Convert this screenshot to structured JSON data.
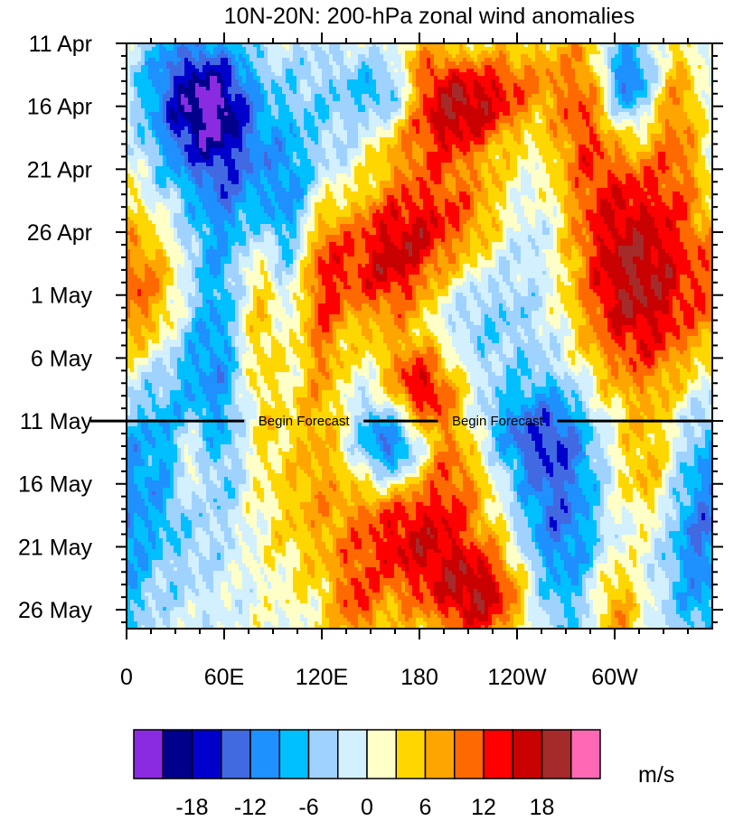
{
  "chart_data": {
    "type": "heatmap",
    "title": "10N-20N: 200-hPa zonal wind anomalies",
    "xlabel": "",
    "ylabel": "",
    "units": "m/s",
    "x_ticks": [
      "0",
      "60E",
      "120E",
      "180",
      "120W",
      "60W"
    ],
    "x_tick_lon": [
      0,
      60,
      120,
      180,
      240,
      300
    ],
    "xlim": [
      0,
      360
    ],
    "y_ticks": [
      "11 Apr",
      "16 Apr",
      "21 Apr",
      "26 Apr",
      "1 May",
      "6 May",
      "11 May",
      "16 May",
      "21 May",
      "26 May"
    ],
    "y_tick_day": [
      0,
      5,
      10,
      15,
      20,
      25,
      30,
      35,
      40,
      45
    ],
    "ylim_days": [
      0,
      46.5
    ],
    "forecast": {
      "day": 30,
      "label": "Begin Forecast",
      "label_lon": [
        109,
        228
      ]
    },
    "colorbar": {
      "levels": [
        -21,
        -18,
        -15,
        -12,
        -9,
        -6,
        -3,
        0,
        3,
        6,
        9,
        12,
        15,
        18,
        21
      ],
      "colors": [
        "#8a2be2",
        "#00008b",
        "#0000cd",
        "#4169e1",
        "#1e90ff",
        "#00bfff",
        "#a0d2ff",
        "#d2f0ff",
        "#ffffc8",
        "#ffd700",
        "#ffa500",
        "#ff6a00",
        "#ff0000",
        "#c80000",
        "#a52a2a",
        "#ff69b4"
      ],
      "labels": [
        "-18",
        "-12",
        "-6",
        "0",
        "6",
        "12",
        "18"
      ],
      "label_values": [
        -18,
        -12,
        -6,
        0,
        6,
        12,
        18
      ]
    },
    "features": [
      {
        "lon": 55,
        "day": 5,
        "slon": 20,
        "sday": 3.5,
        "amp": -16,
        "tilt": 0
      },
      {
        "lon": 30,
        "day": 4,
        "slon": 22,
        "sday": 5,
        "amp": -9,
        "tilt": 0
      },
      {
        "lon": 80,
        "day": 12,
        "slon": 25,
        "sday": 4,
        "amp": -10,
        "tilt": 0
      },
      {
        "lon": 120,
        "day": 7,
        "slon": 20,
        "sday": 6,
        "amp": -6,
        "tilt": 0
      },
      {
        "lon": 160,
        "day": 4,
        "slon": 14,
        "sday": 2,
        "amp": -9,
        "tilt": 0
      },
      {
        "lon": 210,
        "day": 5,
        "slon": 28,
        "sday": 3,
        "amp": 17,
        "tilt": 0.6
      },
      {
        "lon": 185,
        "day": 2,
        "slon": 14,
        "sday": 2,
        "amp": 8,
        "tilt": 0
      },
      {
        "lon": 280,
        "day": 5,
        "slon": 14,
        "sday": 5,
        "amp": 8,
        "tilt": 0
      },
      {
        "lon": 308,
        "day": 3,
        "slon": 12,
        "sday": 3,
        "amp": -16,
        "tilt": 0
      },
      {
        "lon": 340,
        "day": 6,
        "slon": 12,
        "sday": 5,
        "amp": 7,
        "tilt": 0
      },
      {
        "lon": 175,
        "day": 15,
        "slon": 40,
        "sday": 4,
        "amp": 15,
        "tilt": 0.5
      },
      {
        "lon": 250,
        "day": 14,
        "slon": 18,
        "sday": 4,
        "amp": -6,
        "tilt": 0
      },
      {
        "lon": 305,
        "day": 14,
        "slon": 28,
        "sday": 7,
        "amp": 10,
        "tilt": 0
      },
      {
        "lon": 320,
        "day": 21,
        "slon": 32,
        "sday": 6,
        "amp": 12,
        "tilt": 0
      },
      {
        "lon": 15,
        "day": 20,
        "slon": 18,
        "sday": 4,
        "amp": 9,
        "tilt": 0
      },
      {
        "lon": 60,
        "day": 24,
        "slon": 22,
        "sday": 8,
        "amp": -10,
        "tilt": 0
      },
      {
        "lon": 80,
        "day": 22,
        "slon": 11,
        "sday": 8,
        "amp": 11,
        "tilt": 0
      },
      {
        "lon": 120,
        "day": 20,
        "slon": 10,
        "sday": 8,
        "amp": 9,
        "tilt": 0
      },
      {
        "lon": 100,
        "day": 17,
        "slon": 10,
        "sday": 4,
        "amp": -5,
        "tilt": 0
      },
      {
        "lon": 210,
        "day": 22,
        "slon": 30,
        "sday": 4,
        "amp": -6,
        "tilt": 0
      },
      {
        "lon": 165,
        "day": 20,
        "slon": 20,
        "sday": 3,
        "amp": 7,
        "tilt": 0
      },
      {
        "lon": 180,
        "day": 27.5,
        "slon": 18,
        "sday": 2.8,
        "amp": 17,
        "tilt": 0
      },
      {
        "lon": 240,
        "day": 31,
        "slon": 28,
        "sday": 2.5,
        "amp": -8,
        "tilt": 0
      },
      {
        "lon": 150,
        "day": 30,
        "slon": 15,
        "sday": 3,
        "amp": -5,
        "tilt": 0
      },
      {
        "lon": 20,
        "day": 33,
        "slon": 25,
        "sday": 8,
        "amp": -8,
        "tilt": 0
      },
      {
        "lon": 40,
        "day": 33,
        "slon": 8,
        "sday": 3,
        "amp": 9,
        "tilt": 0
      },
      {
        "lon": 110,
        "day": 35,
        "slon": 20,
        "sday": 6,
        "amp": 5,
        "tilt": 0
      },
      {
        "lon": 165,
        "day": 32,
        "slon": 14,
        "sday": 2.5,
        "amp": -16,
        "tilt": 0
      },
      {
        "lon": 205,
        "day": 33,
        "slon": 15,
        "sday": 3,
        "amp": 7,
        "tilt": 0
      },
      {
        "lon": 175,
        "day": 39,
        "slon": 30,
        "sday": 4.5,
        "amp": 15,
        "tilt": 0
      },
      {
        "lon": 220,
        "day": 44,
        "slon": 22,
        "sday": 3,
        "amp": 15,
        "tilt": 0
      },
      {
        "lon": 140,
        "day": 45,
        "slon": 10,
        "sday": 3,
        "amp": 8,
        "tilt": 0
      },
      {
        "lon": 265,
        "day": 37,
        "slon": 20,
        "sday": 8,
        "amp": -13,
        "tilt": 0
      },
      {
        "lon": 350,
        "day": 40,
        "slon": 14,
        "sday": 7,
        "amp": -9,
        "tilt": 0
      },
      {
        "lon": 300,
        "day": 45,
        "slon": 10,
        "sday": 3,
        "amp": 9,
        "tilt": 0
      },
      {
        "lon": 320,
        "day": 34,
        "slon": 15,
        "sday": 3,
        "amp": 6,
        "tilt": 0
      }
    ]
  }
}
